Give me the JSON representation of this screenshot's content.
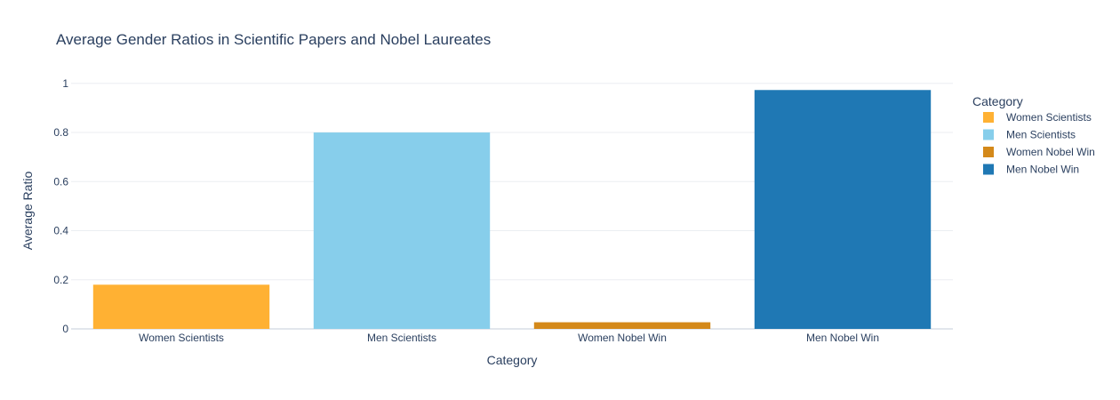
{
  "chart_data": {
    "type": "bar",
    "title": "Average Gender Ratios in Scientific Papers and Nobel Laureates",
    "xlabel": "Category",
    "ylabel": "Average Ratio",
    "categories": [
      "Women Scientists",
      "Men Scientists",
      "Women Nobel Win",
      "Men Nobel Win"
    ],
    "values": [
      0.18,
      0.8,
      0.027,
      0.973
    ],
    "colors": [
      "#ffb133",
      "#87ceeb",
      "#d4891a",
      "#1f78b4"
    ],
    "ylim": [
      0,
      1.05
    ],
    "yticks": [
      0,
      0.2,
      0.4,
      0.6,
      0.8,
      1
    ],
    "ytick_labels": [
      "0",
      "0.2",
      "0.4",
      "0.6",
      "0.8",
      "1"
    ],
    "grid": true,
    "legend": {
      "title": "Category",
      "placement": "right",
      "entries": [
        "Women Scientists",
        "Men Scientists",
        "Women Nobel Win",
        "Men Nobel Win"
      ]
    }
  }
}
